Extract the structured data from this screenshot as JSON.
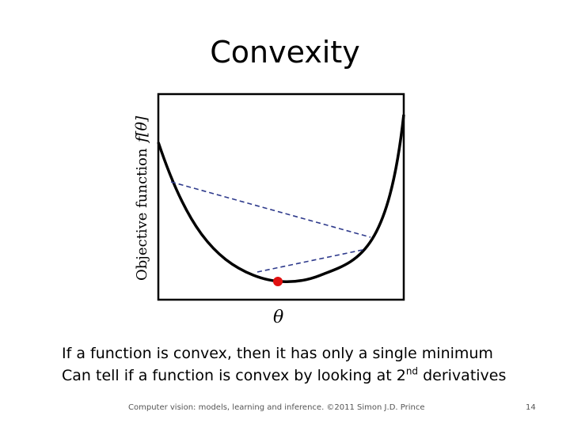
{
  "slide": {
    "title": "Convexity",
    "figure": {
      "y_axis_label": "Objective function",
      "y_axis_symbol": "f[θ]",
      "x_axis_symbol": "θ",
      "curve_color": "#000000",
      "chord_color": "#2e3a8c",
      "minimum_marker_color": "#e01010"
    },
    "bullets": [
      {
        "text": "If a function is convex, then it has only  a single minimum"
      },
      {
        "before": "Can tell if a function is convex by looking at 2",
        "sup": "nd",
        "after": " derivatives"
      }
    ],
    "footer": {
      "text": "Computer vision: models, learning and inference.  ©2011 Simon J.D. Prince",
      "page_number": "14"
    }
  }
}
